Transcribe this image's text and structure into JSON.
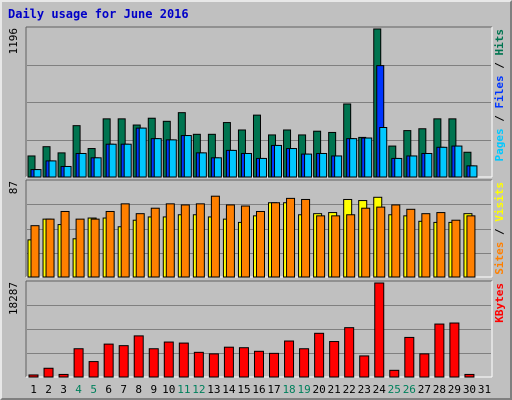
{
  "title": "Daily usage for June 2016",
  "colors": {
    "hits": "#007450",
    "files": "#0036ff",
    "pages": "#00c8ff",
    "visits": "#ffff00",
    "sites": "#ff8000",
    "kbytes": "#ff0000",
    "weekday_label": "#000000",
    "weekend_label": "#00805c",
    "title": "#0000c8"
  },
  "chart_data": [
    {
      "type": "bar",
      "name": "hits-files-pages",
      "y_max_label": "1196",
      "legend": [
        {
          "key": "pages",
          "text": "Pages",
          "color": "#00c8ff"
        },
        {
          "sep": true,
          "text": " / "
        },
        {
          "key": "files",
          "text": "Files",
          "color": "#0036ff"
        },
        {
          "sep": true,
          "text": " / "
        },
        {
          "key": "hits",
          "text": "Hits",
          "color": "#007450"
        }
      ],
      "ylim": [
        0,
        1196
      ],
      "grid": true,
      "series": [
        {
          "name": "Hits",
          "values": [
            170,
            245,
            195,
            415,
            230,
            470,
            470,
            420,
            475,
            450,
            520,
            345,
            345,
            440,
            380,
            500,
            340,
            380,
            340,
            370,
            360,
            590,
            320,
            1196,
            250,
            375,
            390,
            470,
            470,
            200
          ]
        },
        {
          "name": "Files",
          "values": [
            60,
            130,
            85,
            190,
            155,
            265,
            265,
            395,
            310,
            300,
            335,
            195,
            155,
            215,
            190,
            150,
            255,
            230,
            185,
            190,
            170,
            310,
            315,
            900,
            150,
            170,
            190,
            240,
            250,
            90
          ]
        },
        {
          "name": "Pages",
          "values": [
            60,
            130,
            85,
            190,
            155,
            265,
            265,
            395,
            310,
            300,
            335,
            195,
            155,
            215,
            190,
            150,
            255,
            230,
            185,
            190,
            170,
            310,
            315,
            400,
            150,
            170,
            190,
            240,
            250,
            90
          ]
        }
      ]
    },
    {
      "type": "bar",
      "name": "visits-sites",
      "y_max_label": "87",
      "legend": [
        {
          "key": "sites",
          "text": "Sites",
          "color": "#ff8000"
        },
        {
          "sep": true,
          "text": " / "
        },
        {
          "key": "visits",
          "text": "Visits",
          "color": "#ffff00"
        }
      ],
      "ylim": [
        0,
        87
      ],
      "grid": true,
      "series": [
        {
          "name": "Visits",
          "values": [
            34,
            53,
            48,
            35,
            54,
            54,
            46,
            52,
            55,
            55,
            57,
            57,
            55,
            53,
            50,
            56,
            68,
            68,
            57,
            58,
            59,
            71,
            70,
            73,
            57,
            56,
            51,
            50,
            50,
            58
          ]
        },
        {
          "name": "Sites",
          "values": [
            47,
            53,
            60,
            53,
            53,
            60,
            67,
            58,
            63,
            67,
            66,
            67,
            74,
            66,
            65,
            60,
            68,
            72,
            71,
            56,
            56,
            57,
            63,
            64,
            66,
            62,
            58,
            59,
            52,
            56
          ]
        }
      ]
    },
    {
      "type": "bar",
      "name": "kbytes",
      "y_max_label": "18287",
      "legend": [
        {
          "key": "kbytes",
          "text": "KBytes",
          "color": "#ff0000"
        }
      ],
      "ylim": [
        0,
        18287
      ],
      "grid": true,
      "series": [
        {
          "name": "KBytes",
          "values": [
            400,
            1700,
            500,
            5500,
            3000,
            6400,
            6100,
            8000,
            5500,
            6800,
            6600,
            4800,
            4500,
            5800,
            5700,
            5000,
            4600,
            7000,
            5500,
            8500,
            6900,
            9600,
            4100,
            18287,
            1300,
            7700,
            4500,
            10300,
            10500,
            500
          ]
        }
      ]
    }
  ],
  "x_labels": [
    "1",
    "2",
    "3",
    "4",
    "5",
    "6",
    "7",
    "8",
    "9",
    "10",
    "11",
    "12",
    "13",
    "14",
    "15",
    "16",
    "17",
    "18",
    "19",
    "20",
    "21",
    "22",
    "23",
    "24",
    "25",
    "26",
    "27",
    "28",
    "29",
    "30",
    "31"
  ],
  "weekend_days": [
    4,
    5,
    11,
    12,
    18,
    19,
    25,
    26
  ]
}
